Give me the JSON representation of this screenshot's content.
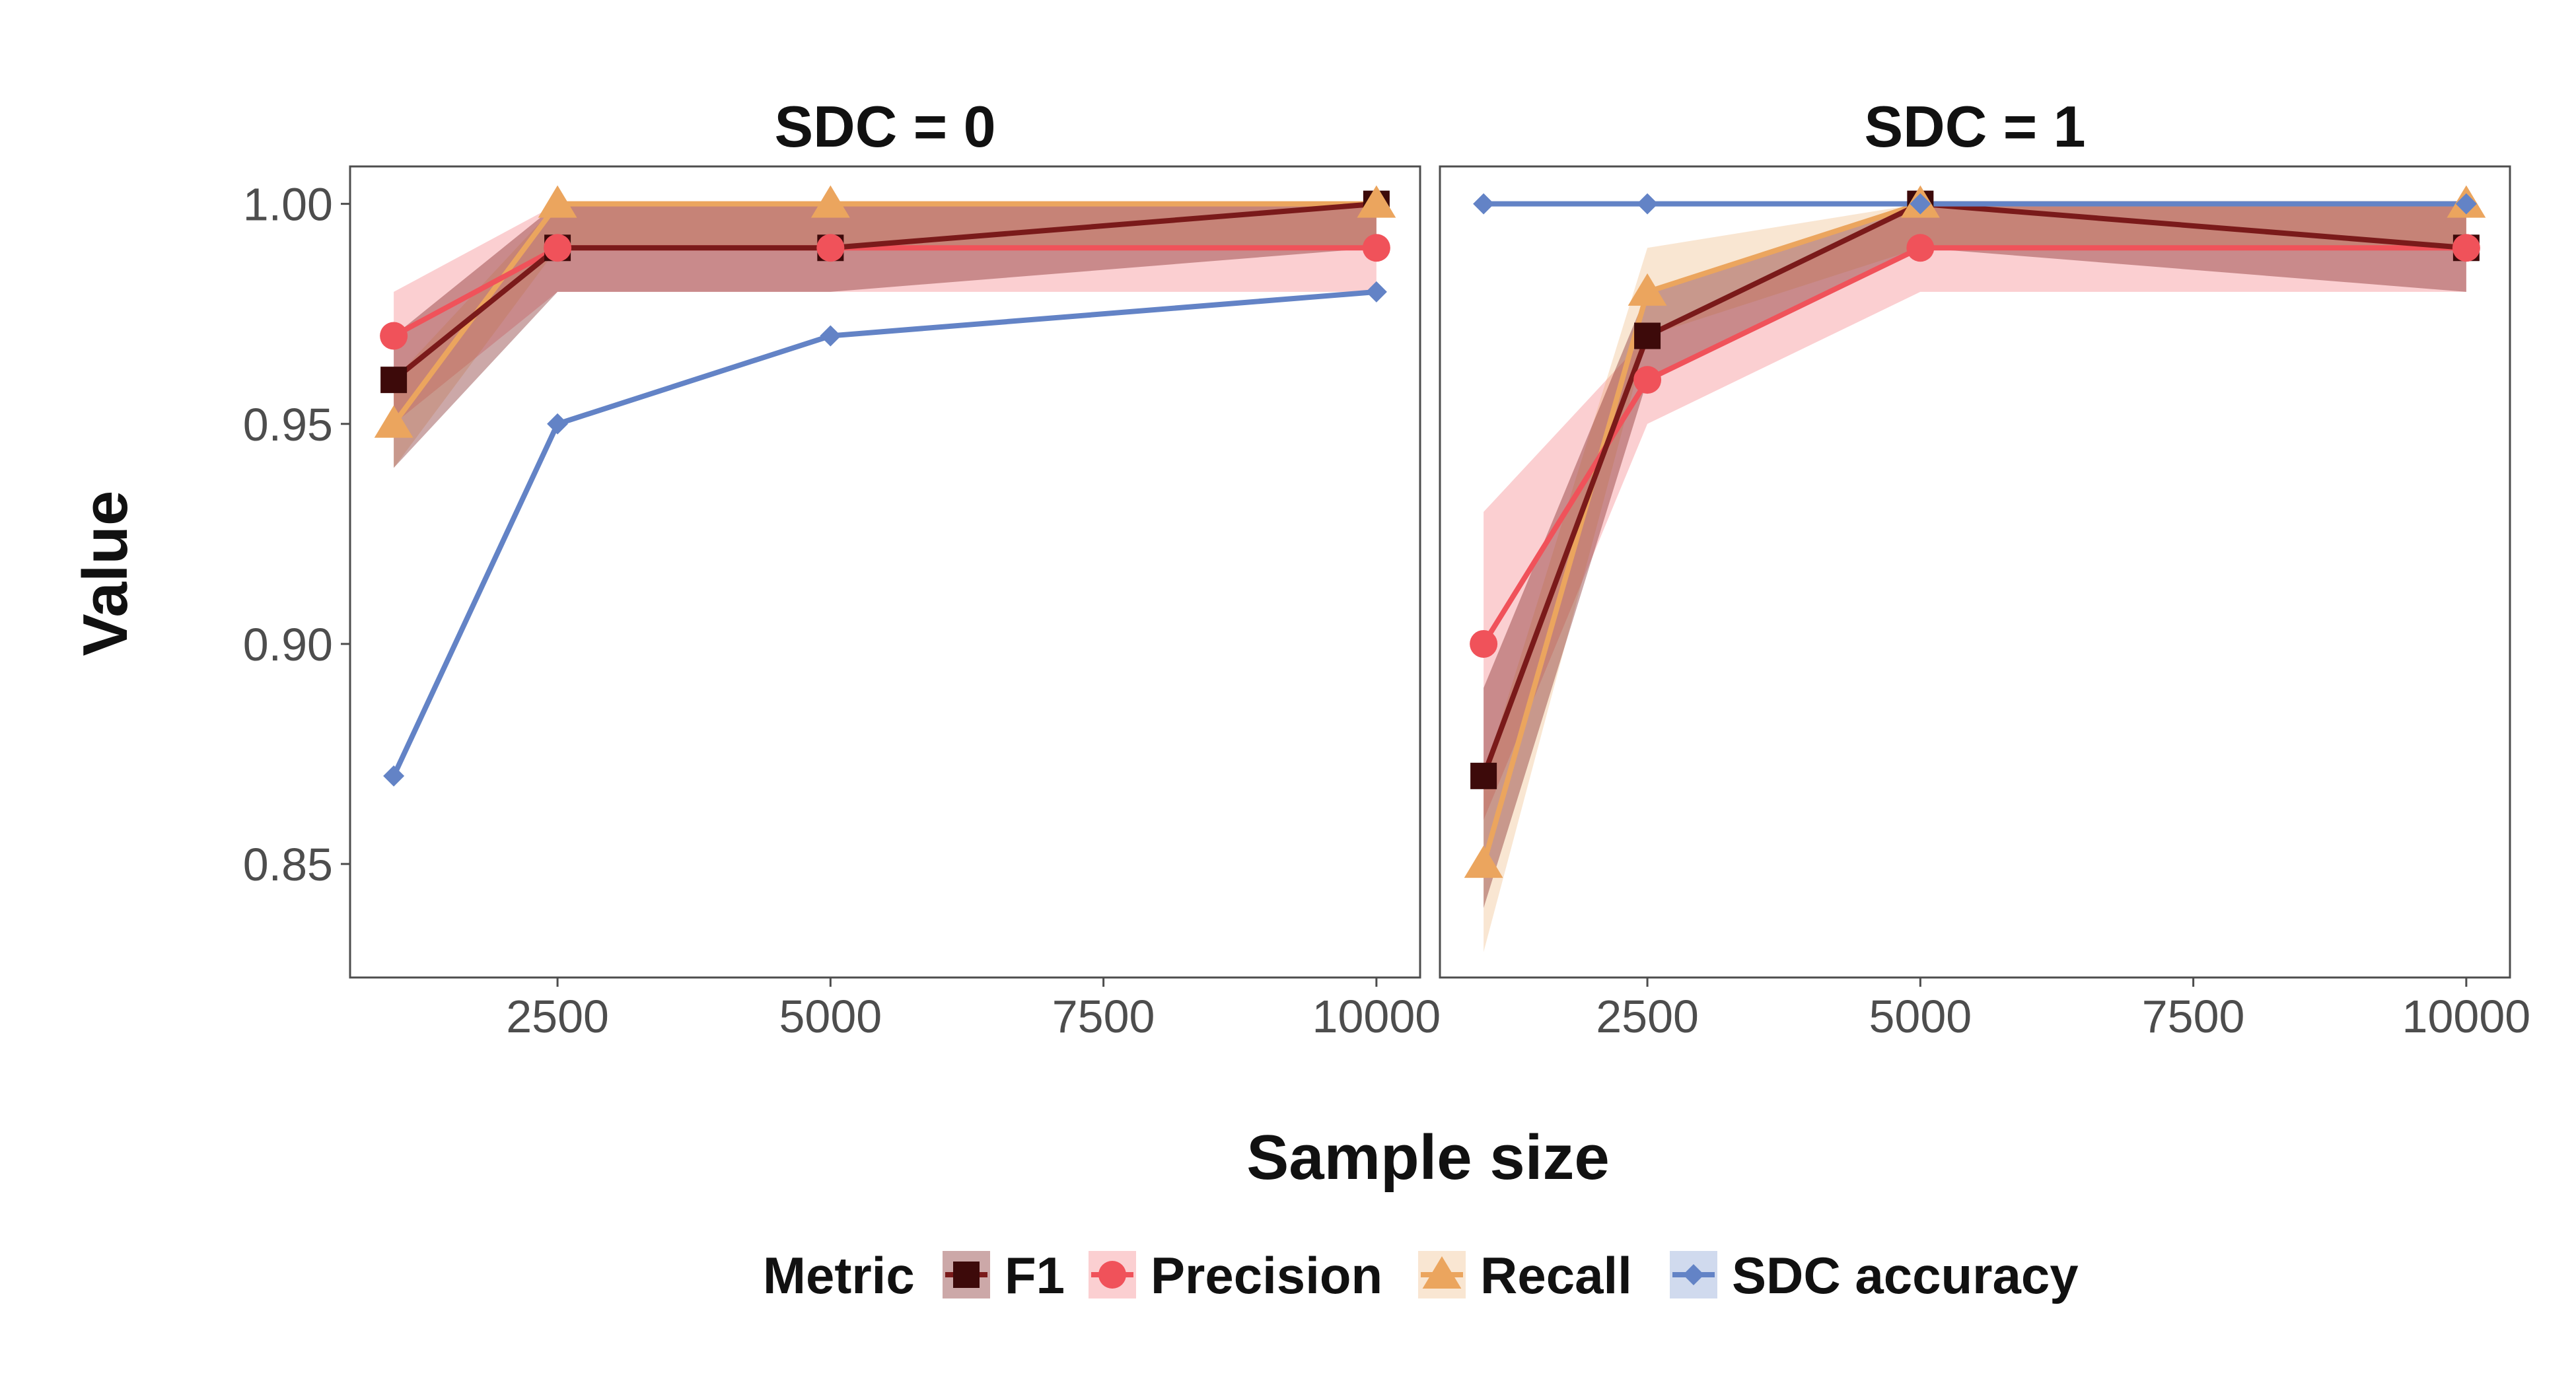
{
  "chart_data": {
    "type": "line",
    "xlabel": "Sample size",
    "ylabel": "Value",
    "xlim": [
      600,
      10400
    ],
    "ylim": [
      0.8242,
      1.0085
    ],
    "x_ticks": [
      2500,
      5000,
      7500,
      10000
    ],
    "x_tick_labels": [
      "2500",
      "5000",
      "7500",
      "10000"
    ],
    "y_ticks": [
      0.85,
      0.9,
      0.95,
      1.0
    ],
    "y_tick_labels": [
      "0.85",
      "0.90",
      "0.95",
      "1.00"
    ],
    "grid": false,
    "legend": {
      "title": "Metric",
      "position": "bottom",
      "entries": [
        "F1",
        "Precision",
        "Recall",
        "SDC accuracy"
      ]
    },
    "colors": {
      "F1": "#7a1a1a",
      "F1_marker": "#3d0a0a",
      "Precision": "#f0525a",
      "Recall": "#eba55e",
      "SDC accuracy": "#6383c6"
    },
    "panels": [
      {
        "title": "SDC = 0",
        "x": [
          1000,
          2500,
          5000,
          10000
        ],
        "series": [
          {
            "name": "F1",
            "marker": "square",
            "values": [
              0.96,
              0.99,
              0.99,
              1.0
            ],
            "lower": [
              0.94,
              0.98,
              0.98,
              0.99
            ],
            "upper": [
              0.97,
              1.0,
              1.0,
              1.0
            ]
          },
          {
            "name": "Precision",
            "marker": "circle",
            "values": [
              0.97,
              0.99,
              0.99,
              0.99
            ],
            "lower": [
              0.95,
              0.98,
              0.98,
              0.98
            ],
            "upper": [
              0.98,
              1.0,
              1.0,
              1.0
            ]
          },
          {
            "name": "Recall",
            "marker": "triangle",
            "values": [
              0.95,
              1.0,
              1.0,
              1.0
            ],
            "lower": [
              0.94,
              0.99,
              0.99,
              0.99
            ],
            "upper": [
              0.96,
              1.0,
              1.0,
              1.0
            ]
          },
          {
            "name": "SDC accuracy",
            "marker": "diamond",
            "values": [
              0.87,
              0.95,
              0.97,
              0.98
            ]
          }
        ]
      },
      {
        "title": "SDC = 1",
        "x": [
          1000,
          2500,
          5000,
          10000
        ],
        "series": [
          {
            "name": "F1",
            "marker": "square",
            "values": [
              0.87,
              0.97,
              1.0,
              0.99
            ],
            "lower": [
              0.84,
              0.96,
              0.99,
              0.98
            ],
            "upper": [
              0.89,
              0.98,
              1.0,
              1.0
            ]
          },
          {
            "name": "Precision",
            "marker": "circle",
            "values": [
              0.9,
              0.96,
              0.99,
              0.99
            ],
            "lower": [
              0.86,
              0.95,
              0.98,
              0.98
            ],
            "upper": [
              0.93,
              0.97,
              1.0,
              1.0
            ]
          },
          {
            "name": "Recall",
            "marker": "triangle",
            "values": [
              0.85,
              0.98,
              1.0,
              1.0
            ],
            "lower": [
              0.83,
              0.97,
              0.99,
              0.99
            ],
            "upper": [
              0.87,
              0.99,
              1.0,
              1.0
            ]
          },
          {
            "name": "SDC accuracy",
            "marker": "diamond",
            "values": [
              1.0,
              1.0,
              1.0,
              1.0
            ]
          }
        ]
      }
    ]
  }
}
